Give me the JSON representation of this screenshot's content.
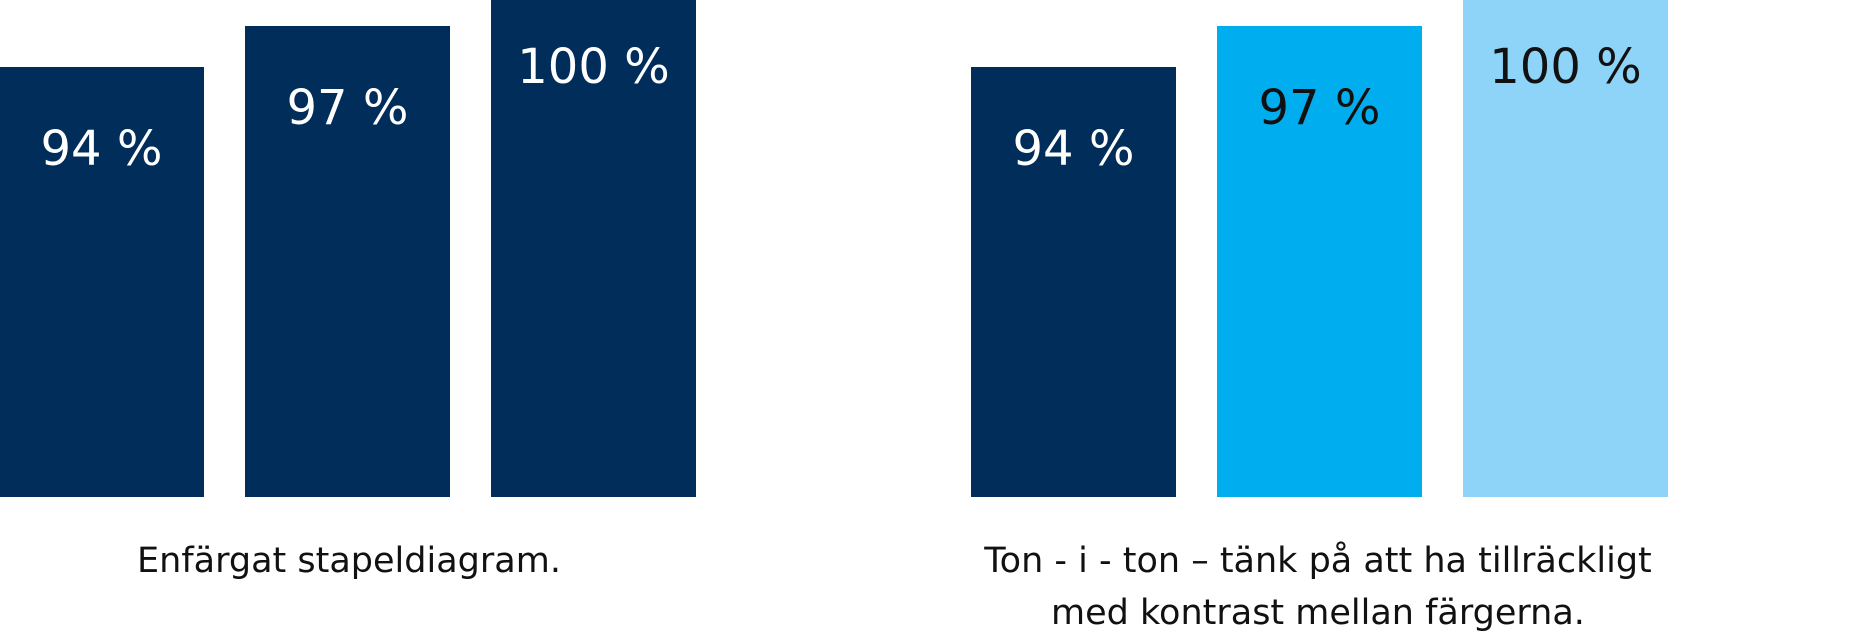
{
  "chart_data": [
    {
      "type": "bar",
      "categories": [
        "",
        "",
        ""
      ],
      "values": [
        94,
        97,
        100
      ],
      "labels": [
        "94 %",
        "97 %",
        "100 %"
      ],
      "colors": [
        "#002d5a",
        "#002d5a",
        "#002d5a"
      ],
      "label_colors": [
        "#ffffff",
        "#ffffff",
        "#ffffff"
      ],
      "title": "",
      "caption": "Enfärgat stapeldiagram.",
      "ylim": [
        0,
        100
      ]
    },
    {
      "type": "bar",
      "categories": [
        "",
        "",
        ""
      ],
      "values": [
        94,
        97,
        100
      ],
      "labels": [
        "94 %",
        "97 %",
        "100 %"
      ],
      "colors": [
        "#002d5a",
        "#00aeef",
        "#8dd4f8"
      ],
      "label_colors": [
        "#ffffff",
        "#111111",
        "#111111"
      ],
      "title": "",
      "caption_lines": [
        "Ton - i - ton – tänk på att ha tillräckligt",
        "med kontrast mellan färgerna."
      ],
      "ylim": [
        0,
        100
      ]
    }
  ]
}
